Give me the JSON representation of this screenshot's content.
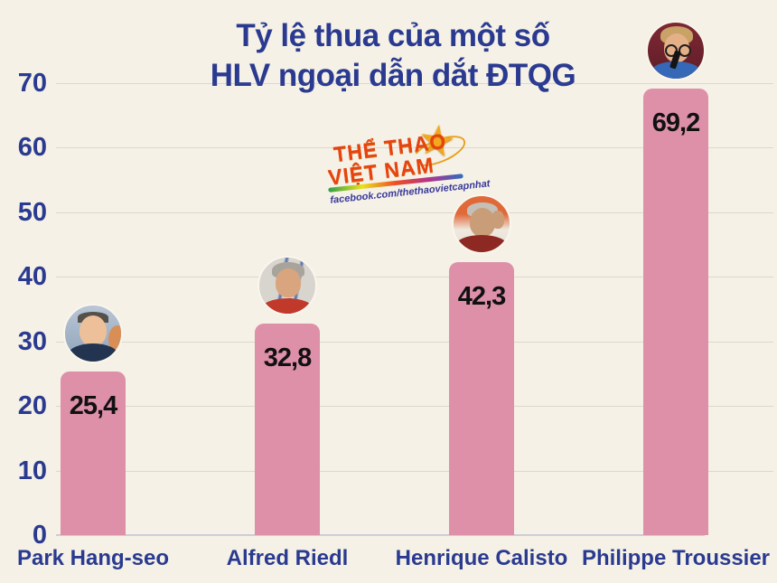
{
  "title": {
    "line1": "Tỷ lệ thua của một số",
    "line2": "HLV ngoại dẫn dắt ĐTQG"
  },
  "logo": {
    "line1": "THỂ THAO",
    "line2": "VIỆT NAM",
    "facebook": "facebook.com/thethaovietcapnhat",
    "star_icon": "star-icon",
    "brand_color": "#e8430f",
    "star_color": "#f2a91d"
  },
  "chart_data": {
    "type": "bar",
    "title": "Tỷ lệ thua của một số HLV ngoại dẫn dắt ĐTQG",
    "categories": [
      "Park Hang-seo",
      "Alfred Riedl",
      "Henrique Calisto",
      "Philippe Troussier"
    ],
    "values": [
      25.4,
      32.8,
      42.3,
      69.2
    ],
    "value_labels": [
      "25,4",
      "32,8",
      "42,3",
      "69,2"
    ],
    "xlabel": "",
    "ylabel": "",
    "ylim": [
      0,
      70
    ],
    "yticks": [
      0,
      10,
      20,
      30,
      40,
      50,
      60,
      70
    ],
    "grid": true,
    "legend": "none",
    "bar_color": "#dd90a8",
    "axis_label_color": "#2a3a90",
    "value_label_color": "#111111",
    "background_color": "#f5f1e6"
  }
}
